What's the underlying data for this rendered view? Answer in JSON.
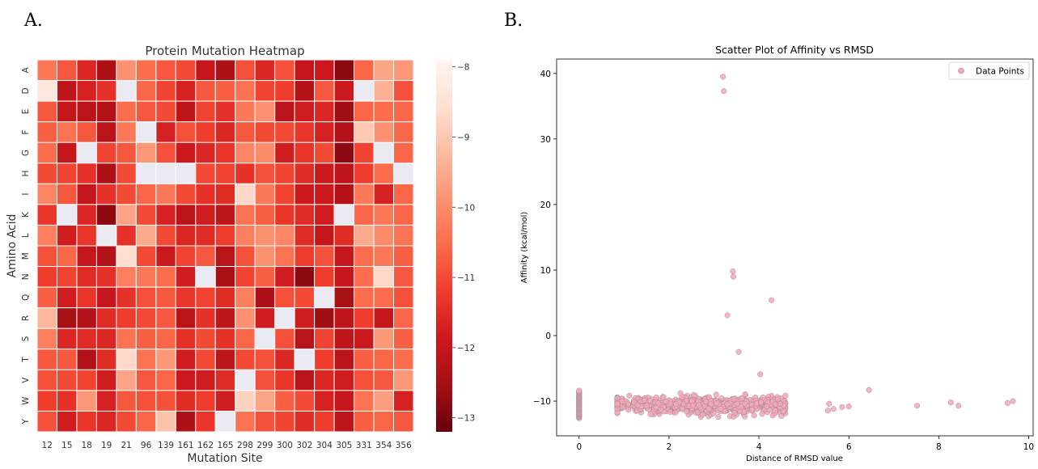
{
  "panels": {
    "a_label": "A.",
    "b_label": "B."
  },
  "chart_data": [
    {
      "type": "heatmap",
      "title": "Protein Mutation Heatmap",
      "xlabel": "Mutation Site",
      "ylabel": "Amino Acid",
      "x_categories": [
        "12",
        "15",
        "18",
        "19",
        "21",
        "96",
        "139",
        "161",
        "162",
        "165",
        "298",
        "299",
        "300",
        "302",
        "304",
        "305",
        "331",
        "354",
        "356"
      ],
      "y_categories": [
        "A",
        "D",
        "E",
        "F",
        "G",
        "H",
        "I",
        "K",
        "L",
        "M",
        "N",
        "Q",
        "R",
        "S",
        "T",
        "V",
        "W",
        "Y"
      ],
      "colormap": "Reds_r",
      "vmin": -13.2,
      "vmax": -7.9,
      "missing_color": "#eaeaf2",
      "colorbar_ticks": [
        -8,
        -9,
        -10,
        -11,
        -12,
        -13
      ],
      "values": [
        [
          -10.3,
          -10.8,
          -11.6,
          -12.4,
          -9.9,
          -10.5,
          -10.8,
          -11.0,
          -12.0,
          -12.4,
          -10.9,
          -11.6,
          -10.9,
          -12.0,
          -11.9,
          -12.8,
          -10.6,
          -9.6,
          -9.8
        ],
        [
          -8.3,
          -12.1,
          -11.7,
          -11.4,
          null,
          -10.6,
          -11.1,
          -11.7,
          -10.8,
          -10.7,
          -10.4,
          -11.1,
          -11.2,
          -12.3,
          -10.8,
          -11.9,
          null,
          -9.4,
          -10.9
        ],
        [
          -10.8,
          -12.0,
          -12.2,
          -12.3,
          -10.5,
          -10.8,
          -11.0,
          -12.1,
          -11.1,
          -11.4,
          -10.3,
          -9.9,
          -12.2,
          -11.8,
          -11.6,
          -12.6,
          -10.6,
          -10.5,
          -10.6
        ],
        [
          -10.7,
          -10.4,
          -10.8,
          -12.2,
          -10.3,
          null,
          -11.7,
          -10.9,
          -11.2,
          -11.6,
          -10.8,
          -11.0,
          -11.0,
          -11.3,
          -11.7,
          -12.3,
          -9.0,
          -9.9,
          -10.6
        ],
        [
          -10.5,
          -12.0,
          null,
          -11.1,
          -10.8,
          -9.8,
          -10.9,
          -11.9,
          -11.6,
          -11.3,
          -10.1,
          -10.0,
          -11.8,
          -11.3,
          -11.0,
          -12.8,
          -11.1,
          null,
          -10.6
        ],
        [
          -11.0,
          -11.1,
          -11.4,
          -12.4,
          -11.0,
          null,
          null,
          null,
          -11.0,
          -11.1,
          -11.4,
          -10.9,
          -11.1,
          -11.5,
          -11.9,
          -12.1,
          -11.2,
          -10.5,
          null
        ],
        [
          -10.1,
          -10.8,
          -12.0,
          -11.4,
          -11.0,
          -10.6,
          -10.3,
          -11.0,
          -11.4,
          -11.5,
          -8.7,
          -10.3,
          -11.1,
          -11.9,
          -11.9,
          -12.3,
          -10.3,
          -11.7,
          -10.6
        ],
        [
          -11.3,
          null,
          -11.6,
          -12.8,
          -9.6,
          -11.0,
          -11.7,
          -12.2,
          -11.8,
          -12.1,
          -10.4,
          -10.7,
          -11.3,
          -11.5,
          -11.8,
          null,
          -10.6,
          -10.3,
          -10.6
        ],
        [
          -10.2,
          -11.8,
          -11.3,
          null,
          -11.4,
          -9.5,
          -11.0,
          -11.6,
          -11.5,
          -11.2,
          -10.2,
          -9.9,
          -10.1,
          -11.5,
          -12.0,
          -11.5,
          -9.5,
          -10.0,
          -10.4
        ],
        [
          -10.9,
          -10.6,
          -12.0,
          -12.3,
          -8.6,
          -11.0,
          -11.9,
          -11.1,
          -10.8,
          -12.2,
          -10.9,
          -9.9,
          -10.4,
          -11.2,
          -10.9,
          -12.0,
          -10.5,
          -10.3,
          -10.7
        ],
        [
          -11.2,
          -11.1,
          -11.5,
          -11.4,
          -10.2,
          -10.3,
          -10.5,
          -11.8,
          null,
          -12.5,
          -11.1,
          -10.7,
          -11.8,
          -12.8,
          -11.2,
          -12.0,
          -10.5,
          -8.7,
          -10.8
        ],
        [
          -10.7,
          -11.8,
          -11.3,
          -12.0,
          -11.4,
          -10.9,
          -10.8,
          -11.3,
          -11.1,
          -11.5,
          -10.2,
          -12.4,
          -10.9,
          -11.0,
          null,
          -12.5,
          -10.5,
          -10.5,
          -10.9
        ],
        [
          -9.3,
          -12.5,
          -12.3,
          -11.5,
          -11.2,
          -11.0,
          -10.8,
          -12.2,
          -11.4,
          -12.1,
          -9.9,
          -11.8,
          null,
          -11.8,
          -12.6,
          -12.1,
          -11.2,
          -12.0,
          -10.6
        ],
        [
          -10.2,
          -11.6,
          -11.5,
          -11.6,
          -10.4,
          -10.7,
          -10.6,
          -11.4,
          -11.0,
          -11.4,
          -10.6,
          null,
          -10.9,
          -12.2,
          -11.1,
          -12.1,
          -11.9,
          -9.8,
          -10.7
        ],
        [
          -10.8,
          -10.8,
          -12.3,
          -11.5,
          -8.7,
          -10.4,
          -9.8,
          -11.8,
          -11.0,
          -12.1,
          -11.0,
          -10.9,
          -11.6,
          null,
          -11.2,
          -12.2,
          -10.7,
          -10.6,
          -10.5
        ],
        [
          -10.9,
          -11.0,
          -11.1,
          -11.8,
          -9.6,
          -10.8,
          -10.6,
          -11.9,
          -11.8,
          -11.5,
          null,
          -10.9,
          -11.3,
          -12.2,
          -11.6,
          -11.8,
          -10.9,
          -10.8,
          -9.8
        ],
        [
          -11.2,
          -11.4,
          -9.8,
          -11.7,
          -10.8,
          -10.9,
          -10.9,
          -11.5,
          -11.2,
          -11.8,
          -8.8,
          -9.6,
          -10.7,
          -11.0,
          -11.7,
          -12.0,
          -10.4,
          -9.7,
          -11.7
        ],
        [
          -10.9,
          -11.8,
          -11.3,
          -11.6,
          -11.0,
          -10.6,
          -9.1,
          -12.4,
          -11.3,
          null,
          -10.4,
          -10.9,
          -11.1,
          -11.5,
          -11.2,
          -12.1,
          -10.7,
          -10.6,
          -10.8
        ]
      ]
    },
    {
      "type": "scatter",
      "title": "Scatter Plot of Affinity vs RMSD",
      "xlabel": "Distance of RMSD value",
      "ylabel": "Affinity (kcal/mol)",
      "xlim": [
        -0.5,
        10.1
      ],
      "ylim": [
        -15.3,
        42.2
      ],
      "xticks": [
        0,
        2,
        4,
        6,
        8,
        10
      ],
      "yticks": [
        -10,
        0,
        10,
        20,
        30,
        40
      ],
      "grid": false,
      "legend_position": "top-right",
      "series": [
        {
          "name": "Data Points",
          "color": "#f4a7b9",
          "edge_color": "#9a8a90",
          "highlighted_points": [
            [
              3.2,
              39.5
            ],
            [
              3.22,
              37.3
            ],
            [
              3.42,
              9.8
            ],
            [
              3.43,
              9.0
            ],
            [
              4.28,
              5.4
            ],
            [
              3.3,
              3.1
            ],
            [
              3.55,
              -2.5
            ],
            [
              4.03,
              -5.9
            ],
            [
              6.45,
              -8.3
            ],
            [
              7.52,
              -10.7
            ],
            [
              8.27,
              -10.2
            ],
            [
              8.44,
              -10.7
            ],
            [
              9.53,
              -10.3
            ],
            [
              9.65,
              -10.0
            ],
            [
              5.85,
              -10.9
            ],
            [
              6.0,
              -10.8
            ],
            [
              5.56,
              -10.4
            ],
            [
              5.66,
              -11.2
            ]
          ],
          "zero_rmsd_cluster": {
            "x": 0,
            "y_min": -12.6,
            "y_max": -8.4,
            "count": 40
          },
          "main_cluster": {
            "x_min": 0.85,
            "x_max": 5.6,
            "y_center": -10.6,
            "y_spread": 1.1,
            "count": 760
          }
        }
      ]
    }
  ]
}
